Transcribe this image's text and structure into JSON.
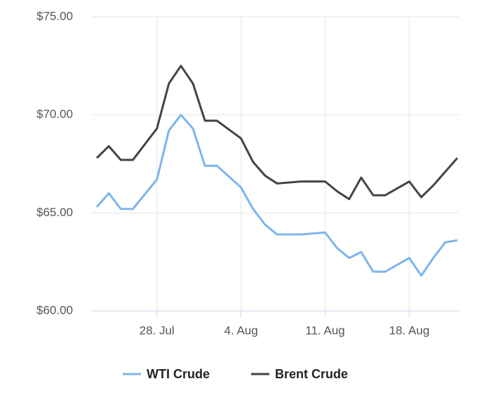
{
  "chart_data": {
    "type": "line",
    "x": [
      "23. Jul",
      "24. Jul",
      "25. Jul",
      "26. Jul",
      "28. Jul",
      "29. Jul",
      "30. Jul",
      "31. Jul",
      "1. Aug",
      "2. Aug",
      "4. Aug",
      "5. Aug",
      "6. Aug",
      "7. Aug",
      "9. Aug",
      "11. Aug",
      "12. Aug",
      "13. Aug",
      "14. Aug",
      "15. Aug",
      "16. Aug",
      "18. Aug",
      "19. Aug",
      "20. Aug",
      "21. Aug",
      "22. Aug"
    ],
    "series": [
      {
        "name": "WTI Crude",
        "color": "#7cb5ec",
        "values": [
          65.3,
          66.0,
          65.2,
          65.2,
          66.7,
          69.2,
          70.0,
          69.3,
          67.4,
          67.4,
          66.3,
          65.2,
          64.4,
          63.9,
          63.9,
          64.0,
          63.2,
          62.7,
          63.0,
          62.0,
          62.0,
          62.7,
          61.8,
          62.7,
          63.5,
          63.6
        ]
      },
      {
        "name": "Brent Crude",
        "color": "#434348",
        "values": [
          67.8,
          68.4,
          67.7,
          67.7,
          69.3,
          71.6,
          72.5,
          71.6,
          69.7,
          69.7,
          68.8,
          67.6,
          66.9,
          66.5,
          66.6,
          66.6,
          66.1,
          65.7,
          66.8,
          65.9,
          65.9,
          66.6,
          65.8,
          66.4,
          67.1,
          67.8
        ]
      }
    ],
    "xlim": [
      "23. Jul",
      "22. Aug"
    ],
    "xticks": [
      "28. Jul",
      "4. Aug",
      "11. Aug",
      "18. Aug"
    ],
    "ylim": [
      60,
      75
    ],
    "yticks": [
      {
        "value": 60,
        "label": "$60.00"
      },
      {
        "value": 65,
        "label": "$65.00"
      },
      {
        "value": 70,
        "label": "$70.00"
      },
      {
        "value": 75,
        "label": "$75.00"
      }
    ],
    "grid": true,
    "legend": "bottom"
  }
}
